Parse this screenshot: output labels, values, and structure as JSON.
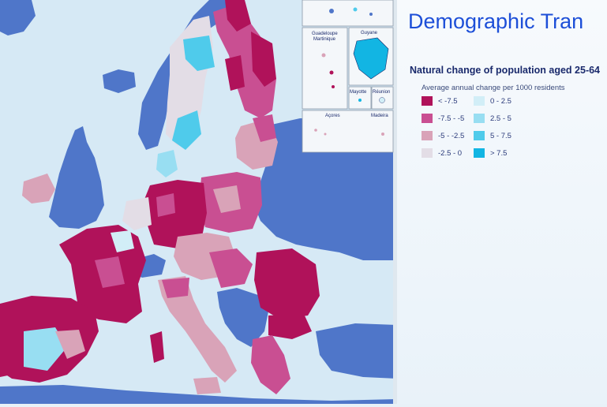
{
  "title": "Demographic Tran",
  "subtitle": "Natural change of population aged 25-64",
  "caption": "Average annual change per 1000 residents",
  "legend": [
    {
      "label": "< -7.5",
      "color": "#b0125a"
    },
    {
      "label": "-7.5 - -5",
      "color": "#c94f92"
    },
    {
      "label": "-5 - -2.5",
      "color": "#d9a3b8"
    },
    {
      "label": "-2.5 - 0",
      "color": "#e3dde6"
    },
    {
      "label": "0 - 2.5",
      "color": "#d2eef7"
    },
    {
      "label": "2.5 - 5",
      "color": "#98def2"
    },
    {
      "label": "5 - 7.5",
      "color": "#4fcbeb"
    },
    {
      "label": "> 7.5",
      "color": "#12b5e3"
    }
  ],
  "insets": {
    "guadeloupe_martinique": "Guadeloupe\nMartinique",
    "guyane": "Guyane",
    "mayotte": "Mayotte",
    "reunion": "Réunion",
    "acores": "Açores",
    "madeira": "Madeira"
  },
  "colors": {
    "sea": "#cfe5f2",
    "non_eu_land": "#4f76c9",
    "high_decline": "#b0125a",
    "accent_title": "#1d4fd8"
  }
}
